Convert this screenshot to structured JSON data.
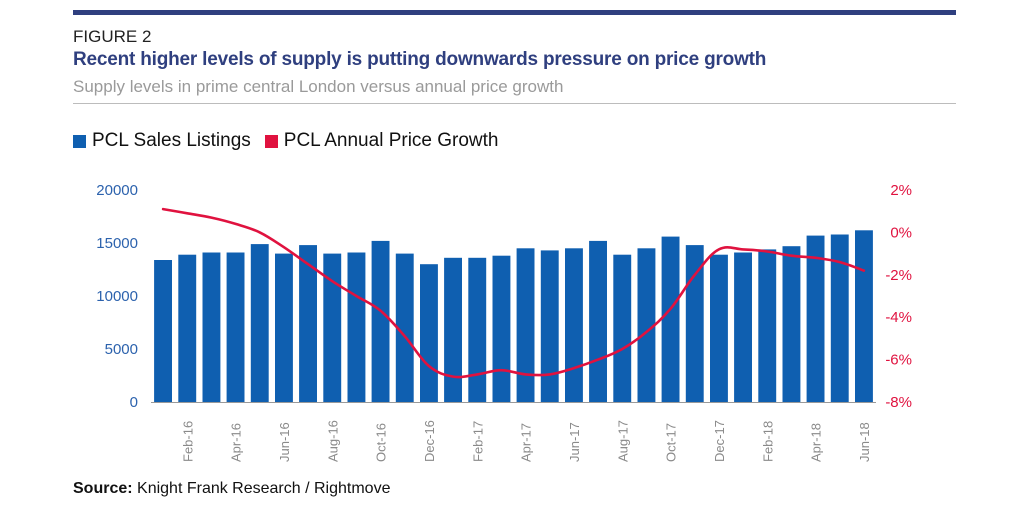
{
  "header": {
    "figure_label": "FIGURE 2",
    "title": "Recent higher levels of supply is putting downwards pressure on price growth",
    "subtitle": "Supply levels in prime central London versus annual price growth"
  },
  "colors": {
    "bars": "#0f5fb0",
    "line": "#e0123f",
    "rule": "#2f3f7f",
    "left_axis_text": "#2c62ad",
    "right_axis_text": "#e0123f"
  },
  "footer": {
    "source_label": "Source:",
    "source_text": " Knight Frank Research / Rightmove"
  },
  "chart_data": {
    "type": "bar",
    "categories": [
      "Jan-16",
      "Feb-16",
      "Mar-16",
      "Apr-16",
      "May-16",
      "Jun-16",
      "Jul-16",
      "Aug-16",
      "Sep-16",
      "Oct-16",
      "Nov-16",
      "Dec-16",
      "Jan-17",
      "Feb-17",
      "Mar-17",
      "Apr-17",
      "May-17",
      "Jun-17",
      "Jul-17",
      "Aug-17",
      "Sep-17",
      "Oct-17",
      "Nov-17",
      "Dec-17",
      "Jan-18",
      "Feb-18",
      "Mar-18",
      "Apr-18",
      "May-18",
      "Jun-18"
    ],
    "tick_labels": [
      "Feb-16",
      "Apr-16",
      "Jun-16",
      "Aug-16",
      "Oct-16",
      "Dec-16",
      "Feb-17",
      "Apr-17",
      "Jun-17",
      "Aug-17",
      "Oct-17",
      "Dec-17",
      "Feb-18",
      "Apr-18",
      "Jun-18"
    ],
    "series": [
      {
        "name": "PCL Sales Listings",
        "type": "bar",
        "axis": "left",
        "values": [
          13400,
          13900,
          14100,
          14100,
          14900,
          14000,
          14800,
          14000,
          14100,
          15200,
          14000,
          13000,
          13600,
          13600,
          13800,
          14500,
          14300,
          14500,
          15200,
          13900,
          14500,
          15600,
          14800,
          13900,
          14100,
          14400,
          14700,
          15700,
          15800,
          16200
        ]
      },
      {
        "name": "PCL Annual Price Growth",
        "type": "line",
        "axis": "right",
        "values": [
          1.1,
          0.9,
          0.7,
          0.4,
          0.0,
          -0.7,
          -1.5,
          -2.3,
          -3.0,
          -3.7,
          -4.9,
          -6.3,
          -6.8,
          -6.7,
          -6.5,
          -6.7,
          -6.7,
          -6.4,
          -6.0,
          -5.5,
          -4.7,
          -3.6,
          -2.0,
          -0.8,
          -0.8,
          -0.9,
          -1.1,
          -1.2,
          -1.4,
          -1.8
        ]
      }
    ],
    "y_left": {
      "ticks": [
        "20000",
        "15000",
        "10000",
        "5000",
        "0"
      ],
      "min": 0,
      "max": 20000
    },
    "y_right": {
      "ticks": [
        "2%",
        "0%",
        "-2%",
        "-4%",
        "-6%",
        "-8%"
      ],
      "min": -8,
      "max": 2
    },
    "legend_position": "top-left",
    "grid": false
  }
}
